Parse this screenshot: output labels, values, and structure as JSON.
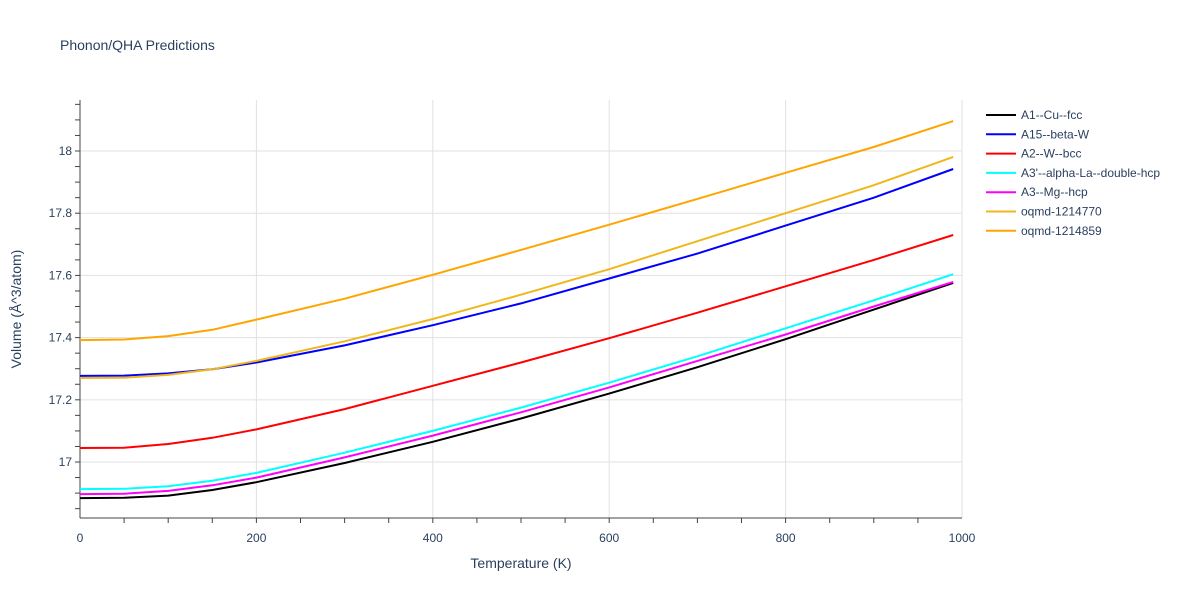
{
  "chart_data": {
    "type": "line",
    "title": "Phonon/QHA Predictions",
    "xlabel": "Temperature (K)",
    "ylabel": "Volume (Å^3/atom)",
    "xlim": [
      0,
      1000
    ],
    "ylim": [
      16.82,
      18.164
    ],
    "xticks": [
      0,
      200,
      400,
      600,
      800,
      1000
    ],
    "xtick_labels": [
      "0",
      "200",
      "400",
      "600",
      "800",
      "1000"
    ],
    "yticks": [
      17,
      17.2,
      17.4,
      17.6,
      17.8,
      18
    ],
    "ytick_labels": [
      "17",
      "17.2",
      "17.4",
      "17.6",
      "17.8",
      "18"
    ],
    "grid": true,
    "legend_position": "right",
    "x": [
      0,
      50,
      100,
      150,
      200,
      300,
      400,
      500,
      600,
      700,
      800,
      900,
      990
    ],
    "series": [
      {
        "name": "A1--Cu--fcc",
        "color": "#000000",
        "values": [
          16.884,
          16.885,
          16.892,
          16.91,
          16.935,
          16.997,
          17.065,
          17.14,
          17.22,
          17.305,
          17.395,
          17.49,
          17.576
        ]
      },
      {
        "name": "A15--beta-W",
        "color": "#0000ff",
        "values": [
          17.277,
          17.278,
          17.285,
          17.298,
          17.32,
          17.375,
          17.44,
          17.51,
          17.59,
          17.67,
          17.76,
          17.85,
          17.942
        ]
      },
      {
        "name": "A2--W--bcc",
        "color": "#ff0000",
        "values": [
          17.045,
          17.046,
          17.058,
          17.078,
          17.105,
          17.17,
          17.245,
          17.32,
          17.398,
          17.48,
          17.565,
          17.65,
          17.73
        ]
      },
      {
        "name": "A3'--alpha-La--double-hcp",
        "color": "#00ffff",
        "values": [
          16.913,
          16.914,
          16.922,
          16.94,
          16.965,
          17.03,
          17.1,
          17.175,
          17.255,
          17.34,
          17.43,
          17.52,
          17.604
        ]
      },
      {
        "name": "A3--Mg--hcp",
        "color": "#ff00ff",
        "values": [
          16.897,
          16.898,
          16.907,
          16.925,
          16.95,
          17.015,
          17.085,
          17.16,
          17.24,
          17.325,
          17.41,
          17.5,
          17.579
        ]
      },
      {
        "name": "oqmd-1214770",
        "color": "#f0b71c",
        "values": [
          17.27,
          17.271,
          17.28,
          17.298,
          17.325,
          17.388,
          17.46,
          17.538,
          17.62,
          17.71,
          17.8,
          17.89,
          17.981
        ]
      },
      {
        "name": "oqmd-1214859",
        "color": "#ffa500",
        "values": [
          17.392,
          17.394,
          17.405,
          17.425,
          17.458,
          17.525,
          17.602,
          17.682,
          17.763,
          17.846,
          17.93,
          18.013,
          18.096
        ]
      }
    ]
  }
}
